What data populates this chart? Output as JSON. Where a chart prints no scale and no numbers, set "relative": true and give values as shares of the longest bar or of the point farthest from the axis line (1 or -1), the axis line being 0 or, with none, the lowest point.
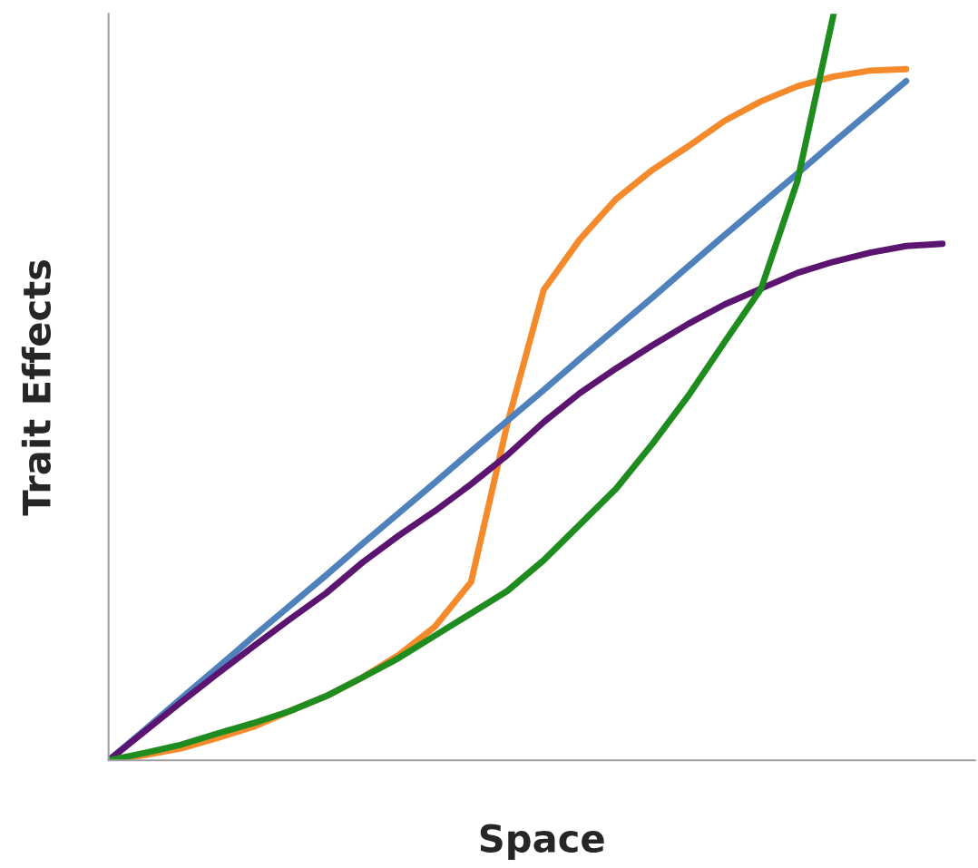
{
  "chart_data": {
    "type": "line",
    "relative": true,
    "xlabel": "Space",
    "ylabel": "Trait Effects",
    "tick_labels": false,
    "marker": "none",
    "line_style": "solid",
    "categories": [
      null,
      null,
      null,
      null,
      null,
      null,
      null,
      null,
      null,
      null,
      null,
      null,
      null,
      null,
      null,
      null,
      null,
      null,
      null,
      null,
      null,
      null,
      null,
      null
    ],
    "series": [
      {
        "color": "#f58a2c",
        "values": [
          0,
          0.007,
          0.016,
          0.03,
          0.045,
          0.066,
          0.086,
          0.111,
          0.141,
          0.179,
          0.239,
          0.451,
          0.63,
          0.698,
          0.752,
          0.791,
          0.823,
          0.857,
          0.883,
          0.903,
          0.916,
          0.924,
          0.926,
          null
        ]
      },
      {
        "color": "#4f81bd",
        "values": [
          0,
          0.041,
          0.083,
          0.124,
          0.166,
          0.207,
          0.248,
          0.29,
          0.331,
          0.372,
          0.414,
          0.455,
          0.496,
          0.538,
          0.579,
          0.62,
          0.662,
          0.704,
          0.745,
          0.786,
          0.828,
          0.869,
          0.91,
          null
        ]
      },
      {
        "color": "#5b1470",
        "values": [
          0,
          0.039,
          0.078,
          0.116,
          0.153,
          0.189,
          0.224,
          0.265,
          0.301,
          0.334,
          0.37,
          0.409,
          0.453,
          0.492,
          0.525,
          0.556,
          0.585,
          0.611,
          0.632,
          0.653,
          0.668,
          0.68,
          0.689,
          0.692
        ]
      },
      {
        "color": "#1e8c1e",
        "values": [
          0,
          0.01,
          0.021,
          0.036,
          0.05,
          0.066,
          0.086,
          0.111,
          0.137,
          0.167,
          0.197,
          0.227,
          0.268,
          0.316,
          0.364,
          0.424,
          0.489,
          0.561,
          0.632,
          0.776,
          1.0,
          null,
          null,
          null
        ]
      }
    ]
  }
}
